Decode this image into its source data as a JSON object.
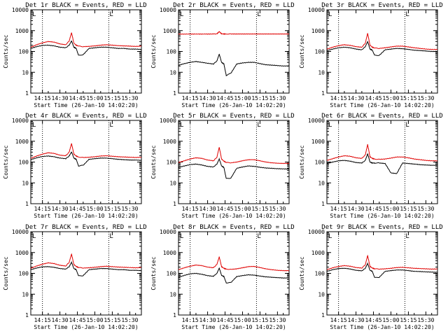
{
  "figure": {
    "y_axis_label": "Counts/sec",
    "x_axis_label": "Start Time (26-Jan-10 14:02:20)",
    "x_tick_labels": [
      "14:15",
      "14:30",
      "14:45",
      "15:00",
      "15:15",
      "15:30"
    ],
    "y_tick_labels": [
      "1",
      "10",
      "100",
      "1000",
      "10000"
    ],
    "series_colors": {
      "events": "#000000",
      "lld": "#e00000"
    },
    "marker_glyph": "L"
  },
  "chart_data": [
    {
      "type": "line",
      "title": "Det 1r BLACK = Events, RED = LLD",
      "xlabel": "Start Time (26-Jan-10 14:02:20)",
      "ylabel": "Counts/sec",
      "yscale": "log",
      "ylim": [
        1,
        10000
      ],
      "x_minutes_after_14_00": [
        5,
        10,
        15,
        20,
        25,
        30,
        35,
        38,
        40,
        42,
        44,
        46,
        50,
        55,
        60,
        65,
        70,
        75,
        80,
        85,
        90,
        95,
        100
      ],
      "x_range_minutes": [
        5,
        100
      ],
      "vertical_dotted_lines_minutes": [
        15,
        72
      ],
      "series": [
        {
          "color": "#000000",
          "values": [
            140,
            170,
            195,
            200,
            185,
            160,
            150,
            200,
            320,
            160,
            140,
            65,
            70,
            140,
            150,
            160,
            160,
            150,
            140,
            140,
            130,
            130,
            125
          ]
        },
        {
          "color": "#e00000",
          "values": [
            160,
            210,
            260,
            300,
            280,
            230,
            210,
            320,
            800,
            250,
            200,
            180,
            170,
            175,
            185,
            200,
            210,
            200,
            190,
            185,
            180,
            175,
            180
          ]
        }
      ]
    },
    {
      "type": "line",
      "title": "Det 2r BLACK = Events, RED = LLD",
      "xlabel": "Start Time (26-Jan-10 14:02:20)",
      "ylabel": "Counts/sec",
      "yscale": "log",
      "ylim": [
        1,
        10000
      ],
      "x_minutes_after_14_00": [
        5,
        10,
        15,
        20,
        25,
        30,
        35,
        38,
        40,
        42,
        44,
        46,
        50,
        55,
        60,
        65,
        70,
        75,
        80,
        85,
        90,
        95,
        100
      ],
      "x_range_minutes": [
        5,
        100
      ],
      "vertical_dotted_lines_minutes": [
        15,
        72
      ],
      "series": [
        {
          "color": "#000000",
          "values": [
            22,
            26,
            30,
            33,
            30,
            27,
            25,
            35,
            75,
            30,
            25,
            7,
            9,
            25,
            28,
            30,
            30,
            26,
            23,
            22,
            21,
            20,
            20
          ]
        },
        {
          "color": "#e00000",
          "values": [
            680,
            680,
            685,
            685,
            685,
            685,
            690,
            700,
            900,
            700,
            690,
            690,
            690,
            690,
            690,
            690,
            690,
            690,
            690,
            690,
            690,
            690,
            690
          ]
        }
      ]
    },
    {
      "type": "line",
      "title": "Det 3r BLACK = Events, RED = LLD",
      "xlabel": "Start Time (26-Jan-10 14:02:20)",
      "ylabel": "Counts/sec",
      "yscale": "log",
      "ylim": [
        1,
        10000
      ],
      "x_minutes_after_14_00": [
        5,
        10,
        15,
        20,
        25,
        30,
        35,
        38,
        40,
        42,
        44,
        46,
        50,
        55,
        60,
        65,
        70,
        75,
        80,
        85,
        90,
        95,
        100
      ],
      "x_range_minutes": [
        5,
        100
      ],
      "vertical_dotted_lines_minutes": [
        15,
        72
      ],
      "series": [
        {
          "color": "#000000",
          "values": [
            110,
            130,
            150,
            160,
            150,
            130,
            120,
            170,
            300,
            130,
            115,
            65,
            65,
            120,
            130,
            140,
            135,
            125,
            115,
            110,
            105,
            100,
            100
          ]
        },
        {
          "color": "#e00000",
          "values": [
            130,
            160,
            190,
            210,
            195,
            170,
            160,
            250,
            750,
            200,
            160,
            145,
            140,
            150,
            165,
            180,
            180,
            165,
            150,
            140,
            130,
            125,
            125
          ]
        }
      ]
    },
    {
      "type": "line",
      "title": "Det 4r BLACK = Events, RED = LLD",
      "xlabel": "Start Time (26-Jan-10 14:02:20)",
      "ylabel": "Counts/sec",
      "yscale": "log",
      "ylim": [
        1,
        10000
      ],
      "x_minutes_after_14_00": [
        5,
        10,
        15,
        20,
        25,
        30,
        35,
        38,
        40,
        42,
        44,
        46,
        50,
        55,
        60,
        65,
        70,
        75,
        80,
        85,
        90,
        95,
        100
      ],
      "x_range_minutes": [
        5,
        100
      ],
      "vertical_dotted_lines_minutes": [
        15,
        72
      ],
      "series": [
        {
          "color": "#000000",
          "values": [
            130,
            160,
            185,
            195,
            180,
            155,
            145,
            195,
            310,
            155,
            135,
            65,
            70,
            135,
            145,
            155,
            155,
            145,
            135,
            130,
            125,
            125,
            120
          ]
        },
        {
          "color": "#e00000",
          "values": [
            150,
            195,
            240,
            280,
            260,
            215,
            200,
            300,
            780,
            240,
            195,
            175,
            165,
            170,
            180,
            195,
            200,
            190,
            180,
            175,
            170,
            165,
            170
          ]
        }
      ]
    },
    {
      "type": "line",
      "title": "Det 5r BLACK = Events, RED = LLD",
      "xlabel": "Start Time (26-Jan-10 14:02:20)",
      "ylabel": "Counts/sec",
      "yscale": "log",
      "ylim": [
        1,
        10000
      ],
      "x_minutes_after_14_00": [
        5,
        10,
        15,
        20,
        25,
        30,
        35,
        38,
        40,
        42,
        44,
        46,
        50,
        55,
        60,
        65,
        70,
        75,
        80,
        85,
        90,
        95,
        100
      ],
      "x_range_minutes": [
        5,
        100
      ],
      "vertical_dotted_lines_minutes": [
        15,
        72
      ],
      "series": [
        {
          "color": "#000000",
          "values": [
            55,
            65,
            75,
            80,
            72,
            62,
            58,
            80,
            140,
            65,
            55,
            16,
            17,
            50,
            58,
            65,
            62,
            56,
            52,
            50,
            48,
            47,
            46
          ]
        },
        {
          "color": "#e00000",
          "values": [
            95,
            115,
            140,
            160,
            150,
            125,
            115,
            170,
            520,
            140,
            110,
            95,
            92,
            100,
            115,
            130,
            130,
            115,
            100,
            92,
            88,
            86,
            86
          ]
        }
      ]
    },
    {
      "type": "line",
      "title": "Det 6r BLACK = Events, RED = LLD",
      "xlabel": "Start Time (26-Jan-10 14:02:20)",
      "ylabel": "Counts/sec",
      "yscale": "log",
      "ylim": [
        1,
        10000
      ],
      "x_minutes_after_14_00": [
        5,
        10,
        15,
        20,
        25,
        30,
        35,
        38,
        40,
        42,
        44,
        46,
        50,
        55,
        60,
        65,
        70,
        75,
        80,
        85,
        90,
        95,
        100
      ],
      "x_range_minutes": [
        5,
        100
      ],
      "vertical_dotted_lines_minutes": [
        15,
        72
      ],
      "series": [
        {
          "color": "#000000",
          "values": [
            85,
            100,
            115,
            120,
            110,
            95,
            90,
            120,
            250,
            100,
            90,
            90,
            90,
            85,
            30,
            28,
            90,
            85,
            80,
            75,
            72,
            70,
            70
          ]
        },
        {
          "color": "#e00000",
          "values": [
            120,
            145,
            175,
            200,
            190,
            160,
            150,
            220,
            700,
            180,
            150,
            140,
            135,
            140,
            155,
            175,
            175,
            160,
            140,
            130,
            120,
            115,
            115
          ]
        }
      ]
    },
    {
      "type": "line",
      "title": "Det 7r BLACK = Events, RED = LLD",
      "xlabel": "Start Time (26-Jan-10 14:02:20)",
      "ylabel": "Counts/sec",
      "yscale": "log",
      "ylim": [
        1,
        10000
      ],
      "x_minutes_after_14_00": [
        5,
        10,
        15,
        20,
        25,
        30,
        35,
        38,
        40,
        42,
        44,
        46,
        50,
        55,
        60,
        65,
        70,
        75,
        80,
        85,
        90,
        95,
        100
      ],
      "x_range_minutes": [
        5,
        100
      ],
      "vertical_dotted_lines_minutes": [
        15,
        72
      ],
      "series": [
        {
          "color": "#000000",
          "values": [
            150,
            180,
            205,
            210,
            195,
            170,
            160,
            210,
            340,
            170,
            150,
            75,
            78,
            150,
            160,
            170,
            170,
            160,
            150,
            150,
            140,
            140,
            135
          ]
        },
        {
          "color": "#e00000",
          "values": [
            175,
            225,
            275,
            320,
            295,
            245,
            225,
            340,
            850,
            265,
            215,
            190,
            180,
            185,
            195,
            210,
            220,
            210,
            200,
            195,
            190,
            185,
            190
          ]
        }
      ]
    },
    {
      "type": "line",
      "title": "Det 8r BLACK = Events, RED = LLD",
      "xlabel": "Start Time (26-Jan-10 14:02:20)",
      "ylabel": "Counts/sec",
      "yscale": "log",
      "ylim": [
        1,
        10000
      ],
      "x_minutes_after_14_00": [
        5,
        10,
        15,
        20,
        25,
        30,
        35,
        38,
        40,
        42,
        44,
        46,
        50,
        55,
        60,
        65,
        70,
        75,
        80,
        85,
        90,
        95,
        100
      ],
      "x_range_minutes": [
        5,
        100
      ],
      "vertical_dotted_lines_minutes": [
        15,
        72
      ],
      "series": [
        {
          "color": "#000000",
          "values": [
            65,
            80,
            95,
            100,
            90,
            78,
            72,
            100,
            180,
            80,
            70,
            35,
            36,
            70,
            78,
            85,
            82,
            74,
            68,
            65,
            62,
            60,
            60
          ]
        },
        {
          "color": "#e00000",
          "values": [
            150,
            185,
            220,
            250,
            235,
            200,
            185,
            270,
            620,
            210,
            175,
            160,
            155,
            165,
            185,
            210,
            215,
            190,
            165,
            150,
            140,
            135,
            135
          ]
        }
      ]
    },
    {
      "type": "line",
      "title": "Det 9r BLACK = Events, RED = LLD",
      "xlabel": "Start Time (26-Jan-10 14:02:20)",
      "ylabel": "Counts/sec",
      "yscale": "log",
      "ylim": [
        1,
        10000
      ],
      "x_minutes_after_14_00": [
        5,
        10,
        15,
        20,
        25,
        30,
        35,
        38,
        40,
        42,
        44,
        46,
        50,
        55,
        60,
        65,
        70,
        75,
        80,
        85,
        90,
        95,
        100
      ],
      "x_range_minutes": [
        5,
        100
      ],
      "vertical_dotted_lines_minutes": [
        15,
        72
      ],
      "series": [
        {
          "color": "#000000",
          "values": [
            125,
            150,
            170,
            175,
            162,
            140,
            132,
            175,
            300,
            140,
            125,
            62,
            65,
            125,
            135,
            145,
            145,
            135,
            125,
            122,
            118,
            115,
            112
          ]
        },
        {
          "color": "#e00000",
          "values": [
            150,
            185,
            215,
            235,
            220,
            190,
            180,
            260,
            720,
            215,
            180,
            165,
            160,
            165,
            175,
            190,
            195,
            185,
            175,
            170,
            165,
            160,
            162
          ]
        }
      ]
    }
  ]
}
